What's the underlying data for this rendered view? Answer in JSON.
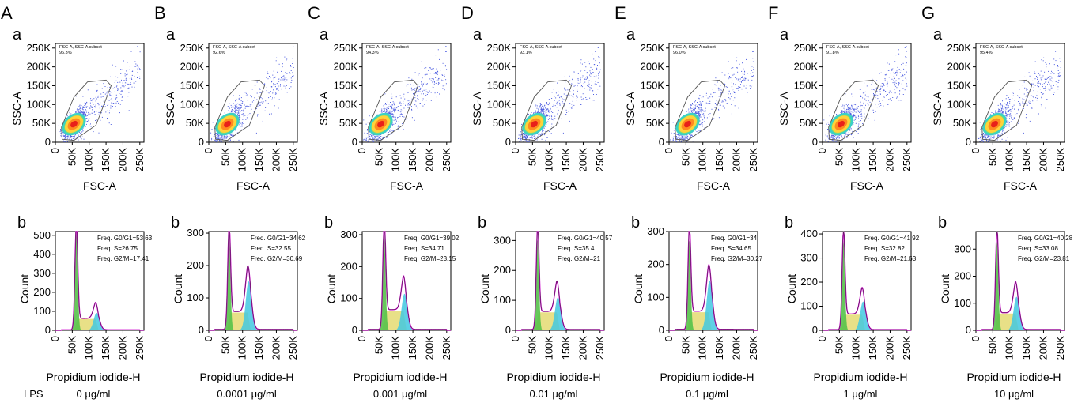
{
  "row_label": "LPS",
  "colors": {
    "dots": "#4d5de0",
    "gate": "#555555",
    "hist_line": "#cc00cc",
    "g1_fill": "#55c24a",
    "s_fill": "#e5dd7a",
    "g2m_fill": "#42c8e0",
    "axis": "#000000"
  },
  "chart_data": [
    {
      "type": "scatter",
      "panels": [
        {
          "panel": "A",
          "subpanel": "a",
          "gate_title": "FSC-A, SSC-A subset",
          "gate_value": "96.3%"
        },
        {
          "panel": "B",
          "subpanel": "a",
          "gate_title": "FSC-A, SSC-A subset",
          "gate_value": "92.6%"
        },
        {
          "panel": "C",
          "subpanel": "a",
          "gate_title": "FSC-A, SSC-A subset",
          "gate_value": "94.3%"
        },
        {
          "panel": "D",
          "subpanel": "a",
          "gate_title": "FSC-A, SSC-A subset",
          "gate_value": "93.1%"
        },
        {
          "panel": "E",
          "subpanel": "a",
          "gate_title": "FSC-A, SSC-A subset",
          "gate_value": "96.0%"
        },
        {
          "panel": "F",
          "subpanel": "a",
          "gate_title": "FSC-A, SSC-A subset",
          "gate_value": "91.8%"
        },
        {
          "panel": "G",
          "subpanel": "a",
          "gate_title": "FSC-A, SSC-A subset",
          "gate_value": "95.4%"
        }
      ],
      "xlabel": "FSC-A",
      "ylabel": "SSC-A",
      "xticks": [
        "0",
        "50K",
        "100K",
        "150K",
        "200K",
        "250K"
      ],
      "yticks": [
        "0",
        "50K",
        "100K",
        "150K",
        "200K",
        "250K"
      ],
      "xlim": [
        0,
        262144
      ],
      "ylim": [
        0,
        262144
      ],
      "gate_polygon": [
        [
          20000,
          8000
        ],
        [
          55000,
          5000
        ],
        [
          120000,
          45000
        ],
        [
          165000,
          150000
        ],
        [
          150000,
          165000
        ],
        [
          95000,
          160000
        ],
        [
          55000,
          120000
        ],
        [
          18000,
          40000
        ]
      ],
      "population_center": [
        55000,
        48000
      ],
      "grid": false
    },
    {
      "type": "area",
      "panels": [
        {
          "panel": "A",
          "subpanel": "b",
          "dose": "0 μg/ml",
          "ylim": [
            0,
            520
          ],
          "yticks": [
            "0",
            "100",
            "200",
            "300",
            "400",
            "500"
          ],
          "stats": [
            "Freq. G0/G1=53.63",
            "Freq. S=26.75",
            "Freq. G2/M=17.41"
          ],
          "g1_peak_x": 62000,
          "g1_peak": 520,
          "s_level": 60,
          "g2_peak_x": 122000,
          "g2_peak": 100
        },
        {
          "panel": "B",
          "subpanel": "b",
          "dose": "0.0001 μg/ml",
          "ylim": [
            0,
            305
          ],
          "yticks": [
            "0",
            "100",
            "200",
            "300"
          ],
          "stats": [
            "Freq. G0/G1=34.62",
            "Freq. S=32.55",
            "Freq. G2/M=30.69"
          ],
          "g1_peak_x": 60000,
          "g1_peak": 283,
          "s_level": 55,
          "g2_peak_x": 118000,
          "g2_peak": 165
        },
        {
          "panel": "C",
          "subpanel": "b",
          "dose": "0.001 μg/ml",
          "ylim": [
            0,
            310
          ],
          "yticks": [
            "0",
            "100",
            "200",
            "300"
          ],
          "stats": [
            "Freq. G0/G1=39.02",
            "Freq. S=34.71",
            "Freq. G2/M=23.15"
          ],
          "g1_peak_x": 65000,
          "g1_peak": 302,
          "s_level": 62,
          "g2_peak_x": 125000,
          "g2_peak": 125
        },
        {
          "panel": "D",
          "subpanel": "b",
          "dose": "0.01 μg/ml",
          "ylim": [
            0,
            330
          ],
          "yticks": [
            "0",
            "100",
            "200",
            "300"
          ],
          "stats": [
            "Freq. G0/G1=40.57",
            "Freq. S=35.4",
            "Freq. G2/M=21"
          ],
          "g1_peak_x": 65000,
          "g1_peak": 305,
          "s_level": 60,
          "g2_peak_x": 125000,
          "g2_peak": 120
        },
        {
          "panel": "E",
          "subpanel": "b",
          "dose": "0.1 μg/ml",
          "ylim": [
            0,
            300
          ],
          "yticks": [
            "0",
            "100",
            "200",
            "300"
          ],
          "stats": [
            "Freq. G0/G1=34",
            "Freq. S=34.65",
            "Freq. G2/M=30.27"
          ],
          "g1_peak_x": 60000,
          "g1_peak": 275,
          "s_level": 55,
          "g2_peak_x": 120000,
          "g2_peak": 165
        },
        {
          "panel": "F",
          "subpanel": "b",
          "dose": "1 μg/ml",
          "ylim": [
            0,
            410
          ],
          "yticks": [
            "0",
            "100",
            "200",
            "300",
            "400"
          ],
          "stats": [
            "Freq. G0/G1=41.92",
            "Freq. S=32.82",
            "Freq. G2/M=21.63"
          ],
          "g1_peak_x": 62000,
          "g1_peak": 372,
          "s_level": 65,
          "g2_peak_x": 120000,
          "g2_peak": 130
        },
        {
          "panel": "G",
          "subpanel": "b",
          "dose": "10 μg/ml",
          "ylim": [
            0,
            365
          ],
          "yticks": [
            "0",
            "100",
            "200",
            "300"
          ],
          "stats": [
            "Freq. G0/G1=40.28",
            "Freq. S=33.08",
            "Freq. G2/M=23.81"
          ],
          "g1_peak_x": 62000,
          "g1_peak": 330,
          "s_level": 62,
          "g2_peak_x": 120000,
          "g2_peak": 135
        }
      ],
      "xlabel": "Propidium iodide-H",
      "ylabel": "Count",
      "xticks": [
        "0",
        "50K",
        "100K",
        "150K",
        "200K",
        "250K"
      ],
      "xlim": [
        0,
        262144
      ],
      "grid": false
    }
  ]
}
